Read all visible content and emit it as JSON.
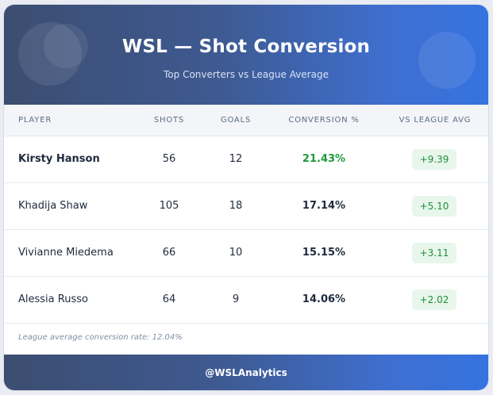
{
  "header": {
    "title": "WSL — Shot Conversion",
    "subtitle": "Top Converters vs League Average"
  },
  "table": {
    "columns": [
      "PLAYER",
      "SHOTS",
      "GOALS",
      "CONVERSION %",
      "VS LEAGUE AVG"
    ],
    "rows": [
      {
        "player": "Kirsty Hanson",
        "shots": "56",
        "goals": "12",
        "conversion": "21.43%",
        "vs_avg": "+9.39"
      },
      {
        "player": "Khadija Shaw",
        "shots": "105",
        "goals": "18",
        "conversion": "17.14%",
        "vs_avg": "+5.10"
      },
      {
        "player": "Vivianne Miedema",
        "shots": "66",
        "goals": "10",
        "conversion": "15.15%",
        "vs_avg": "+3.11"
      },
      {
        "player": "Alessia Russo",
        "shots": "64",
        "goals": "9",
        "conversion": "14.06%",
        "vs_avg": "+2.02"
      }
    ]
  },
  "note": "League average conversion rate: 12.04%",
  "footer": {
    "handle": "@WSLAnalytics"
  },
  "colors": {
    "header_gradient_start": "#3c4d70",
    "header_gradient_end": "#3573e0",
    "positive_green": "#1e9a3c",
    "badge_bg": "#e8f6ec"
  }
}
